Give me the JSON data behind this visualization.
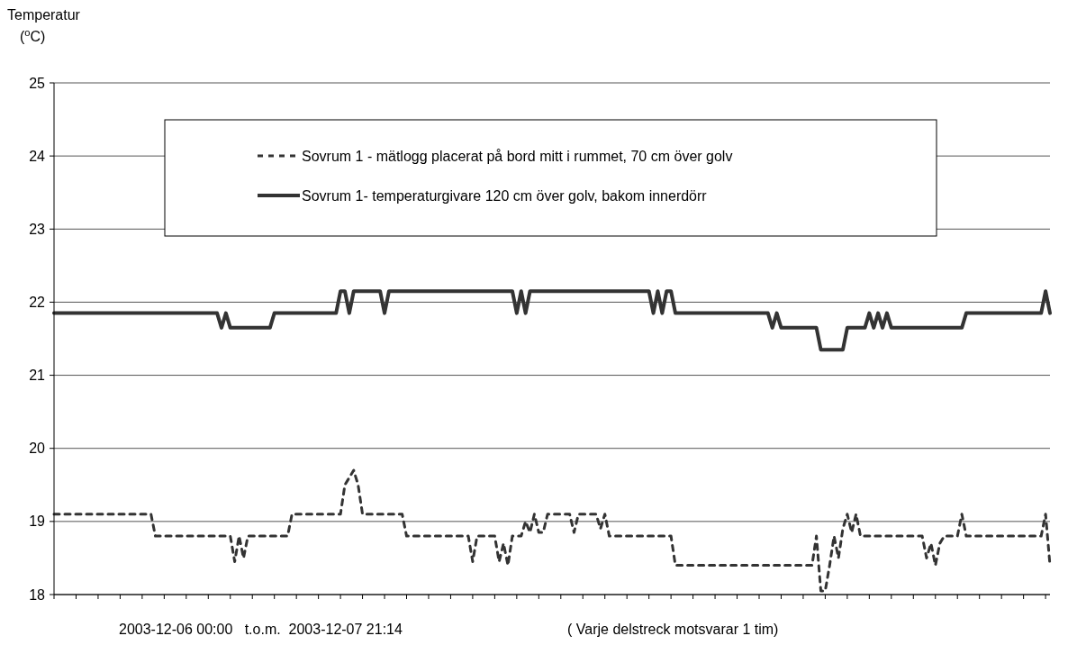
{
  "chart_data": {
    "type": "line",
    "ylabel": "Temperatur\n($^{o}$C)",
    "ylim": [
      18,
      25
    ],
    "yticks": [
      18,
      19,
      20,
      21,
      22,
      23,
      24,
      25
    ],
    "categories": [
      null,
      null,
      null,
      null,
      null,
      null,
      null,
      null,
      null,
      null,
      null,
      null,
      null,
      null,
      null,
      null,
      null,
      null,
      null,
      null,
      null,
      null,
      null,
      null,
      null,
      null,
      null,
      null,
      null,
      null,
      null,
      null,
      null,
      null,
      null,
      null,
      null,
      null,
      null,
      null,
      null,
      null,
      null,
      null,
      null,
      null,
      null,
      null,
      null,
      null,
      null,
      null,
      null,
      null,
      null,
      null,
      null,
      null,
      null,
      null,
      null,
      null,
      null,
      null,
      null,
      null,
      null,
      null,
      null,
      null,
      null,
      null,
      null,
      null,
      null,
      null,
      null,
      null,
      null,
      null,
      null,
      null,
      null,
      null,
      null,
      null,
      null,
      null,
      null,
      null,
      null,
      null,
      null,
      null,
      null,
      null,
      null,
      null,
      null,
      null,
      null,
      null,
      null,
      null,
      null,
      null,
      null,
      null,
      null,
      null,
      null,
      null,
      null,
      null,
      null,
      null,
      null,
      null,
      null,
      null,
      null,
      null,
      null,
      null,
      null,
      null,
      null,
      null,
      null,
      null,
      null,
      null,
      null,
      null,
      null,
      null,
      null,
      null,
      null,
      null,
      null,
      null,
      null,
      null,
      null,
      null,
      null,
      null,
      null,
      null,
      null,
      null,
      null,
      null,
      null,
      null,
      null,
      null,
      null,
      null,
      null,
      null,
      null,
      null,
      null,
      null,
      null,
      null,
      null,
      null,
      null,
      null,
      null,
      null,
      null,
      null,
      null,
      null,
      null,
      null,
      null,
      null,
      null,
      null,
      null,
      null,
      null,
      null,
      null,
      null,
      null,
      null,
      null,
      null,
      null,
      null,
      null,
      null,
      null,
      null,
      null,
      null,
      null,
      null,
      null,
      null,
      null,
      null,
      null,
      null,
      null,
      null,
      null,
      null,
      null,
      null,
      null,
      null,
      null,
      null,
      null,
      null,
      null,
      null,
      null,
      null,
      null
    ],
    "grid": "y",
    "legend": "top",
    "tick_labels": "y",
    "annotations": [
      "2003-12-06 00:00   t.o.m.  2003-12-07 21:14",
      "( Varje delstreck motsvarar 1 tim)"
    ],
    "series": [
      {
        "name": "Sovrum 1 - mätlogg placerat på bord mitt i rummet, 70 cm över golv",
        "color": "#333333",
        "line_style": "dashed",
        "values": [
          19.1,
          19.1,
          19.1,
          19.1,
          19.1,
          19.1,
          19.1,
          19.1,
          19.1,
          19.1,
          19.1,
          19.1,
          19.1,
          19.1,
          19.1,
          19.1,
          19.1,
          19.1,
          19.1,
          19.1,
          19.1,
          19.1,
          19.1,
          18.8,
          18.8,
          18.8,
          18.8,
          18.8,
          18.8,
          18.8,
          18.8,
          18.8,
          18.8,
          18.8,
          18.8,
          18.8,
          18.8,
          18.8,
          18.8,
          18.8,
          18.8,
          18.45,
          18.8,
          18.5,
          18.8,
          18.8,
          18.8,
          18.8,
          18.8,
          18.8,
          18.8,
          18.8,
          18.8,
          18.8,
          19.1,
          19.1,
          19.1,
          19.1,
          19.1,
          19.1,
          19.1,
          19.1,
          19.1,
          19.1,
          19.1,
          19.1,
          19.5,
          19.6,
          19.7,
          19.5,
          19.1,
          19.1,
          19.1,
          19.1,
          19.1,
          19.1,
          19.1,
          19.1,
          19.1,
          19.1,
          18.8,
          18.8,
          18.8,
          18.8,
          18.8,
          18.8,
          18.8,
          18.8,
          18.8,
          18.8,
          18.8,
          18.8,
          18.8,
          18.8,
          18.8,
          18.45,
          18.8,
          18.8,
          18.8,
          18.8,
          18.8,
          18.45,
          18.7,
          18.4,
          18.8,
          18.8,
          18.8,
          19.0,
          18.85,
          19.1,
          18.85,
          18.85,
          19.1,
          19.1,
          19.1,
          19.1,
          19.1,
          19.1,
          18.85,
          19.1,
          19.1,
          19.1,
          19.1,
          19.1,
          18.9,
          19.1,
          18.8,
          18.8,
          18.8,
          18.8,
          18.8,
          18.8,
          18.8,
          18.8,
          18.8,
          18.8,
          18.8,
          18.8,
          18.8,
          18.8,
          18.8,
          18.4,
          18.4,
          18.4,
          18.4,
          18.4,
          18.4,
          18.4,
          18.4,
          18.4,
          18.4,
          18.4,
          18.4,
          18.4,
          18.4,
          18.4,
          18.4,
          18.4,
          18.4,
          18.4,
          18.4,
          18.4,
          18.4,
          18.4,
          18.4,
          18.4,
          18.4,
          18.4,
          18.4,
          18.4,
          18.4,
          18.4,
          18.4,
          18.8,
          18.05,
          18.05,
          18.4,
          18.8,
          18.5,
          18.9,
          19.1,
          18.85,
          19.1,
          18.8,
          18.8,
          18.8,
          18.8,
          18.8,
          18.8,
          18.8,
          18.8,
          18.8,
          18.8,
          18.8,
          18.8,
          18.8,
          18.8,
          18.8,
          18.5,
          18.7,
          18.4,
          18.7,
          18.8,
          18.8,
          18.8,
          18.8,
          19.1,
          18.8,
          18.8,
          18.8,
          18.8,
          18.8,
          18.8,
          18.8,
          18.8,
          18.8,
          18.8,
          18.8,
          18.8,
          18.8,
          18.8,
          18.8,
          18.8,
          18.8,
          18.8,
          19.1,
          18.4
        ]
      },
      {
        "name": "Sovrum 1- temperaturgivare 120 cm över golv, bakom innerdörr",
        "color": "#333333",
        "line_style": "solid",
        "values": [
          21.85,
          21.85,
          21.85,
          21.85,
          21.85,
          21.85,
          21.85,
          21.85,
          21.85,
          21.85,
          21.85,
          21.85,
          21.85,
          21.85,
          21.85,
          21.85,
          21.85,
          21.85,
          21.85,
          21.85,
          21.85,
          21.85,
          21.85,
          21.85,
          21.85,
          21.85,
          21.85,
          21.85,
          21.85,
          21.85,
          21.85,
          21.85,
          21.85,
          21.85,
          21.85,
          21.85,
          21.85,
          21.85,
          21.65,
          21.85,
          21.65,
          21.65,
          21.65,
          21.65,
          21.65,
          21.65,
          21.65,
          21.65,
          21.65,
          21.65,
          21.85,
          21.85,
          21.85,
          21.85,
          21.85,
          21.85,
          21.85,
          21.85,
          21.85,
          21.85,
          21.85,
          21.85,
          21.85,
          21.85,
          21.85,
          22.15,
          22.15,
          21.85,
          22.15,
          22.15,
          22.15,
          22.15,
          22.15,
          22.15,
          22.15,
          21.85,
          22.15,
          22.15,
          22.15,
          22.15,
          22.15,
          22.15,
          22.15,
          22.15,
          22.15,
          22.15,
          22.15,
          22.15,
          22.15,
          22.15,
          22.15,
          22.15,
          22.15,
          22.15,
          22.15,
          22.15,
          22.15,
          22.15,
          22.15,
          22.15,
          22.15,
          22.15,
          22.15,
          22.15,
          22.15,
          21.85,
          22.15,
          21.85,
          22.15,
          22.15,
          22.15,
          22.15,
          22.15,
          22.15,
          22.15,
          22.15,
          22.15,
          22.15,
          22.15,
          22.15,
          22.15,
          22.15,
          22.15,
          22.15,
          22.15,
          22.15,
          22.15,
          22.15,
          22.15,
          22.15,
          22.15,
          22.15,
          22.15,
          22.15,
          22.15,
          22.15,
          21.85,
          22.15,
          21.85,
          22.15,
          22.15,
          21.85,
          21.85,
          21.85,
          21.85,
          21.85,
          21.85,
          21.85,
          21.85,
          21.85,
          21.85,
          21.85,
          21.85,
          21.85,
          21.85,
          21.85,
          21.85,
          21.85,
          21.85,
          21.85,
          21.85,
          21.85,
          21.85,
          21.65,
          21.85,
          21.65,
          21.65,
          21.65,
          21.65,
          21.65,
          21.65,
          21.65,
          21.65,
          21.65,
          21.35,
          21.35,
          21.35,
          21.35,
          21.35,
          21.35,
          21.65,
          21.65,
          21.65,
          21.65,
          21.65,
          21.85,
          21.65,
          21.85,
          21.65,
          21.85,
          21.65,
          21.65,
          21.65,
          21.65,
          21.65,
          21.65,
          21.65,
          21.65,
          21.65,
          21.65,
          21.65,
          21.65,
          21.65,
          21.65,
          21.65,
          21.65,
          21.65,
          21.85,
          21.85,
          21.85,
          21.85,
          21.85,
          21.85,
          21.85,
          21.85,
          21.85,
          21.85,
          21.85,
          21.85,
          21.85,
          21.85,
          21.85,
          21.85,
          21.85,
          21.85,
          22.15,
          21.85
        ]
      }
    ]
  }
}
